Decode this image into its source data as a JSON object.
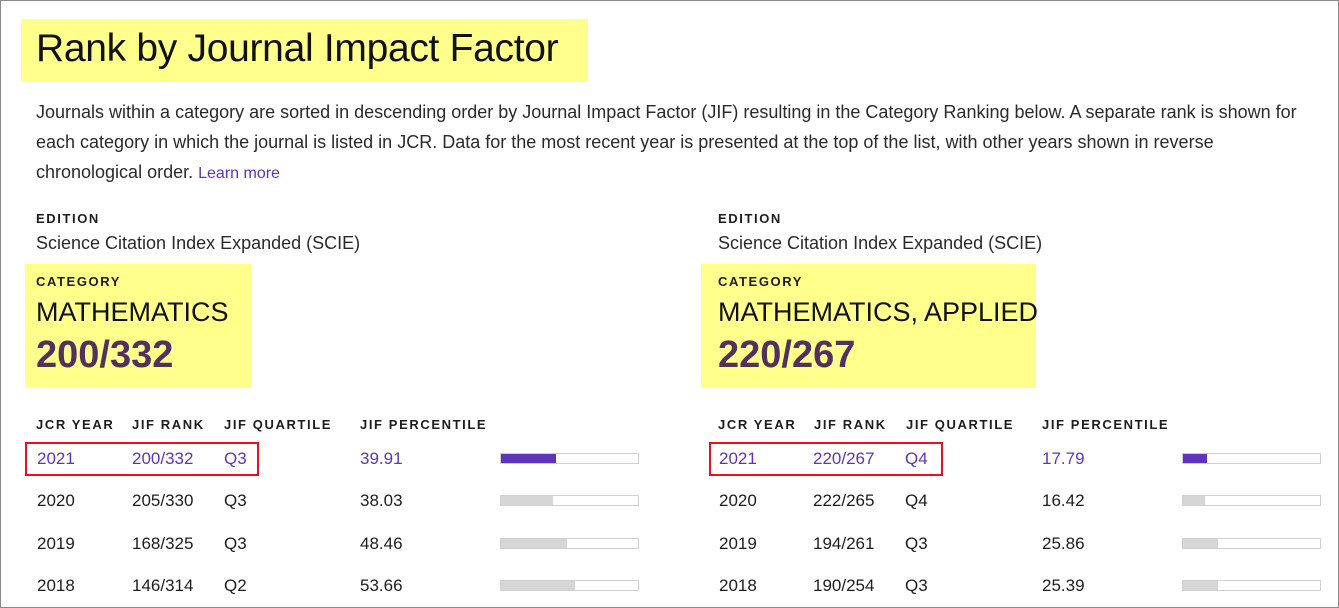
{
  "title": "Rank by Journal Impact Factor",
  "description": "Journals within a category are sorted in descending order by Journal Impact Factor (JIF) resulting in the Category Ranking below. A separate rank is shown for each category in which the journal is listed in JCR. Data for the most recent year is presented at the top of the list, with other years shown in reverse chronological order.",
  "learn_more": "Learn more",
  "colors": {
    "highlight": "#ffff8c",
    "accent": "#5e33bf",
    "rank": "#54305e",
    "annotation_box": "#e0141e"
  },
  "labels": {
    "edition": "EDITION",
    "category": "CATEGORY"
  },
  "table_headers": [
    "JCR YEAR",
    "JIF RANK",
    "JIF QUARTILE",
    "JIF PERCENTILE"
  ],
  "panels": [
    {
      "edition": "Science Citation Index Expanded (SCIE)",
      "category": "MATHEMATICS",
      "rank": "200/332",
      "rows": [
        {
          "year": "2021",
          "rank": "200/332",
          "quartile": "Q3",
          "percentile": "39.91",
          "percentile_value": 39.91,
          "current": true
        },
        {
          "year": "2020",
          "rank": "205/330",
          "quartile": "Q3",
          "percentile": "38.03",
          "percentile_value": 38.03,
          "current": false
        },
        {
          "year": "2019",
          "rank": "168/325",
          "quartile": "Q3",
          "percentile": "48.46",
          "percentile_value": 48.46,
          "current": false
        },
        {
          "year": "2018",
          "rank": "146/314",
          "quartile": "Q2",
          "percentile": "53.66",
          "percentile_value": 53.66,
          "current": false
        }
      ]
    },
    {
      "edition": "Science Citation Index Expanded (SCIE)",
      "category": "MATHEMATICS, APPLIED",
      "rank": "220/267",
      "rows": [
        {
          "year": "2021",
          "rank": "220/267",
          "quartile": "Q4",
          "percentile": "17.79",
          "percentile_value": 17.79,
          "current": true
        },
        {
          "year": "2020",
          "rank": "222/265",
          "quartile": "Q4",
          "percentile": "16.42",
          "percentile_value": 16.42,
          "current": false
        },
        {
          "year": "2019",
          "rank": "194/261",
          "quartile": "Q3",
          "percentile": "25.86",
          "percentile_value": 25.86,
          "current": false
        },
        {
          "year": "2018",
          "rank": "190/254",
          "quartile": "Q3",
          "percentile": "25.39",
          "percentile_value": 25.39,
          "current": false
        }
      ]
    }
  ]
}
